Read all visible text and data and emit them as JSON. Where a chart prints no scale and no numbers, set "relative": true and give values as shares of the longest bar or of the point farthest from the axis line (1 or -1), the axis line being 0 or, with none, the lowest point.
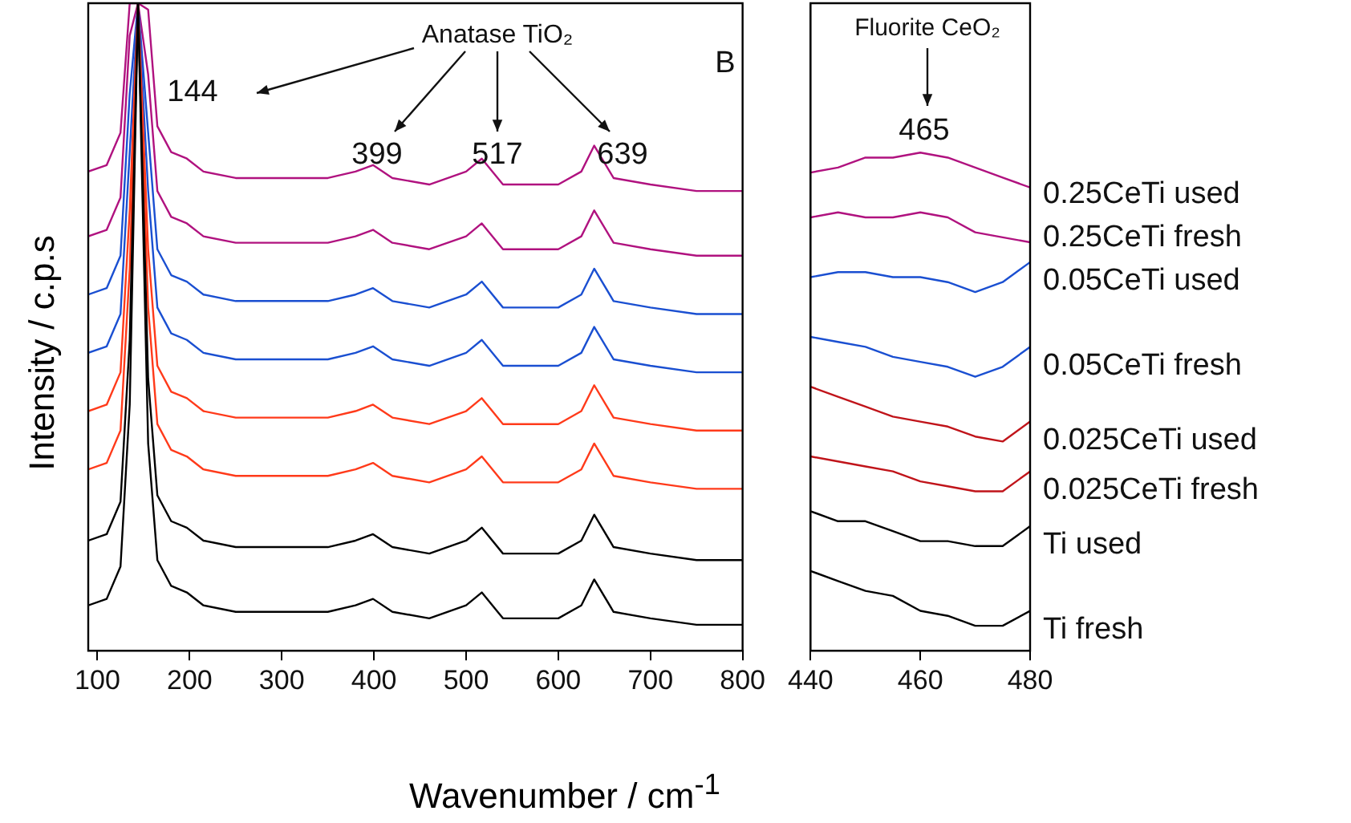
{
  "chart_data": [
    {
      "type": "line",
      "relative": true,
      "ylabel": "Intensity / c.p.s",
      "xlabel": "Wavenumber / cm$^{-1}$",
      "xlim": [
        90,
        800
      ],
      "xticks": [
        100,
        200,
        300,
        400,
        500,
        600,
        700,
        800
      ],
      "tick_labels": "x",
      "grid": false,
      "legend": false,
      "marker": "none",
      "line_style": "solid",
      "x": [
        90,
        110,
        125,
        135,
        144,
        155,
        165,
        180,
        197,
        215,
        250,
        300,
        350,
        380,
        399,
        420,
        460,
        500,
        517,
        540,
        600,
        625,
        639,
        660,
        700,
        750,
        800
      ],
      "annotations": [
        "Anatase TiO₂",
        "144",
        "399",
        "517",
        "639",
        "B"
      ],
      "series": [
        {
          "color": "#000000",
          "values": [
            0.07,
            0.08,
            0.13,
            0.38,
            1,
            0.32,
            0.14,
            0.1,
            0.09,
            0.07,
            0.06,
            0.06,
            0.06,
            0.07,
            0.08,
            0.06,
            0.05,
            0.07,
            0.09,
            0.05,
            0.05,
            0.07,
            0.11,
            0.06,
            0.05,
            0.04,
            0.04
          ]
        },
        {
          "color": "#000000",
          "values": [
            0.17,
            0.18,
            0.23,
            0.48,
            1,
            0.42,
            0.24,
            0.2,
            0.19,
            0.17,
            0.16,
            0.16,
            0.16,
            0.17,
            0.18,
            0.16,
            0.15,
            0.17,
            0.19,
            0.15,
            0.15,
            0.17,
            0.21,
            0.16,
            0.15,
            0.14,
            0.14
          ]
        },
        {
          "color": "#ff3a1a",
          "values": [
            0.28,
            0.29,
            0.34,
            0.59,
            1,
            0.53,
            0.35,
            0.31,
            0.3,
            0.28,
            0.27,
            0.27,
            0.27,
            0.28,
            0.29,
            0.27,
            0.26,
            0.28,
            0.3,
            0.26,
            0.26,
            0.28,
            0.32,
            0.27,
            0.26,
            0.25,
            0.25
          ]
        },
        {
          "color": "#ff3a1a",
          "values": [
            0.37,
            0.38,
            0.43,
            0.68,
            1,
            0.62,
            0.44,
            0.4,
            0.39,
            0.37,
            0.36,
            0.36,
            0.36,
            0.37,
            0.38,
            0.36,
            0.35,
            0.37,
            0.39,
            0.35,
            0.35,
            0.37,
            0.41,
            0.36,
            0.35,
            0.34,
            0.34
          ]
        },
        {
          "color": "#1a4fd1",
          "values": [
            0.46,
            0.47,
            0.52,
            0.77,
            1,
            0.71,
            0.53,
            0.49,
            0.48,
            0.46,
            0.45,
            0.45,
            0.45,
            0.46,
            0.47,
            0.45,
            0.44,
            0.46,
            0.48,
            0.44,
            0.44,
            0.46,
            0.5,
            0.45,
            0.44,
            0.43,
            0.43
          ]
        },
        {
          "color": "#1a4fd1",
          "values": [
            0.55,
            0.56,
            0.61,
            0.86,
            1,
            0.8,
            0.62,
            0.58,
            0.57,
            0.55,
            0.54,
            0.54,
            0.54,
            0.55,
            0.56,
            0.54,
            0.53,
            0.55,
            0.57,
            0.53,
            0.53,
            0.55,
            0.59,
            0.54,
            0.53,
            0.52,
            0.52
          ]
        },
        {
          "color": "#b0127f",
          "values": [
            0.64,
            0.65,
            0.7,
            0.95,
            1,
            0.89,
            0.71,
            0.67,
            0.66,
            0.64,
            0.63,
            0.63,
            0.63,
            0.64,
            0.65,
            0.63,
            0.62,
            0.64,
            0.66,
            0.62,
            0.62,
            0.64,
            0.68,
            0.63,
            0.62,
            0.61,
            0.61
          ]
        },
        {
          "color": "#b0127f",
          "values": [
            0.74,
            0.75,
            0.8,
            1,
            1,
            0.99,
            0.81,
            0.77,
            0.76,
            0.74,
            0.73,
            0.73,
            0.73,
            0.74,
            0.75,
            0.73,
            0.72,
            0.74,
            0.76,
            0.72,
            0.72,
            0.74,
            0.78,
            0.73,
            0.72,
            0.71,
            0.71
          ]
        }
      ]
    },
    {
      "type": "line",
      "relative": true,
      "xlim": [
        440,
        480
      ],
      "xticks": [
        440,
        460,
        480
      ],
      "tick_labels": "x",
      "grid": false,
      "legend": false,
      "marker": "none",
      "line_style": "solid",
      "x": [
        440,
        445,
        450,
        455,
        460,
        465,
        470,
        475,
        480
      ],
      "annotations": [
        "Fluorite CeO₂",
        "465"
      ],
      "series": [
        {
          "name": "Ti fresh",
          "color": "#000000",
          "values": [
            0.16,
            0.14,
            0.12,
            0.11,
            0.08,
            0.07,
            0.05,
            0.05,
            0.08
          ]
        },
        {
          "name": "Ti used",
          "color": "#000000",
          "values": [
            0.28,
            0.26,
            0.26,
            0.24,
            0.22,
            0.22,
            0.21,
            0.21,
            0.25
          ]
        },
        {
          "name": "0.025CeTi fresh",
          "color": "#c0141a",
          "values": [
            0.39,
            0.38,
            0.37,
            0.36,
            0.34,
            0.33,
            0.32,
            0.32,
            0.36
          ]
        },
        {
          "name": "0.025CeTi used",
          "color": "#c0141a",
          "values": [
            0.53,
            0.51,
            0.49,
            0.47,
            0.46,
            0.45,
            0.43,
            0.42,
            0.46
          ]
        },
        {
          "name": "0.05CeTi fresh",
          "color": "#1a4fd1",
          "values": [
            0.63,
            0.62,
            0.61,
            0.59,
            0.58,
            0.57,
            0.55,
            0.57,
            0.61
          ]
        },
        {
          "name": "0.05CeTi used",
          "color": "#1a4fd1",
          "values": [
            0.75,
            0.76,
            0.76,
            0.75,
            0.75,
            0.74,
            0.72,
            0.74,
            0.78
          ]
        },
        {
          "name": "0.25CeTi fresh",
          "color": "#b0127f",
          "values": [
            0.87,
            0.88,
            0.87,
            0.87,
            0.88,
            0.87,
            0.84,
            0.83,
            0.82
          ]
        },
        {
          "name": "0.25CeTi used",
          "color": "#b0127f",
          "values": [
            0.96,
            0.97,
            0.99,
            0.99,
            1,
            0.99,
            0.97,
            0.95,
            0.93
          ]
        }
      ]
    }
  ]
}
